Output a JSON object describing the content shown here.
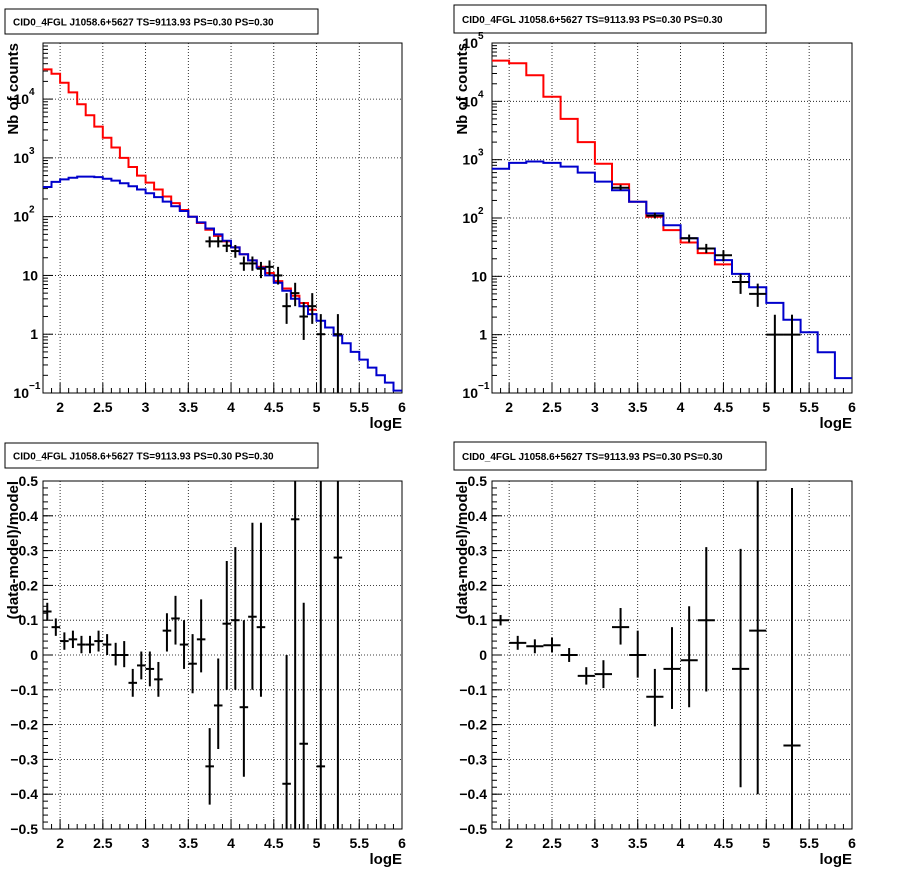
{
  "chart_data": [
    {
      "type": "line",
      "title": "CID0_4FGL J1058.6+5627 TS=9113.93 PS=0.30 PS=0.30",
      "xlabel": "logE",
      "ylabel": "Nb of counts",
      "xlim": [
        1.8,
        6.0
      ],
      "ylim": [
        0.1,
        90000
      ],
      "log_y": true,
      "grid": true,
      "x_ticks": [
        "2",
        "2.5",
        "3",
        "3.5",
        "4",
        "4.5",
        "5",
        "5.5",
        "6"
      ],
      "y_ticks": [
        {
          "v": 0.1,
          "b": "10",
          "e": "−1"
        },
        {
          "v": 1,
          "b": "1",
          "e": ""
        },
        {
          "v": 10,
          "b": "10",
          "e": ""
        },
        {
          "v": 100,
          "b": "10",
          "e": "2"
        },
        {
          "v": 1000,
          "b": "10",
          "e": "3"
        },
        {
          "v": 10000,
          "b": "10",
          "e": "4"
        }
      ],
      "series": [
        {
          "color": "#ff0000",
          "kind": "step",
          "edges": [
            1.8,
            1.9,
            2.0,
            2.1,
            2.2,
            2.3,
            2.4,
            2.5,
            2.6,
            2.7,
            2.8,
            2.9,
            3.0,
            3.1,
            3.2,
            3.3,
            3.4,
            3.5,
            3.6,
            3.7,
            3.8,
            3.9,
            4.0,
            4.1,
            4.2,
            4.3,
            4.4,
            4.5,
            4.6,
            4.7,
            4.8,
            4.9,
            5.0
          ],
          "values": [
            32000,
            27000,
            19000,
            13000,
            8200,
            5300,
            3400,
            2200,
            1500,
            1000,
            700,
            500,
            380,
            290,
            220,
            170,
            130,
            100,
            78,
            60,
            47,
            38,
            30,
            23,
            18,
            14,
            11,
            8,
            6,
            4.5,
            3.4,
            2.6
          ]
        },
        {
          "color": "#0000cc",
          "kind": "step",
          "edges": [
            1.8,
            1.9,
            2.0,
            2.1,
            2.2,
            2.3,
            2.4,
            2.5,
            2.6,
            2.7,
            2.8,
            2.9,
            3.0,
            3.1,
            3.2,
            3.3,
            3.4,
            3.5,
            3.6,
            3.7,
            3.8,
            3.9,
            4.0,
            4.1,
            4.2,
            4.3,
            4.4,
            4.5,
            4.6,
            4.7,
            4.8,
            4.9,
            5.0,
            5.1,
            5.2,
            5.3,
            5.4,
            5.5,
            5.6,
            5.7,
            5.8,
            5.9,
            6.0
          ],
          "values": [
            320,
            390,
            430,
            460,
            480,
            480,
            470,
            440,
            410,
            370,
            330,
            290,
            250,
            215,
            180,
            150,
            125,
            100,
            80,
            63,
            50,
            39,
            30,
            23,
            18,
            13.5,
            10,
            7.5,
            5.5,
            4,
            3,
            2.2,
            1.7,
            1.3,
            0.95,
            0.7,
            0.5,
            0.37,
            0.27,
            0.2,
            0.15,
            0.11
          ]
        },
        {
          "color": "#000000",
          "kind": "errors",
          "points": [
            {
              "x": 3.75,
              "xerr": 0.05,
              "y": 38,
              "lo": 30,
              "hi": 46
            },
            {
              "x": 3.85,
              "xerr": 0.05,
              "y": 38,
              "lo": 30,
              "hi": 46
            },
            {
              "x": 3.95,
              "xerr": 0.05,
              "y": 32,
              "lo": 25,
              "hi": 39
            },
            {
              "x": 4.05,
              "xerr": 0.05,
              "y": 26,
              "lo": 20,
              "hi": 33
            },
            {
              "x": 4.15,
              "xerr": 0.05,
              "y": 16,
              "lo": 12,
              "hi": 21
            },
            {
              "x": 4.25,
              "xerr": 0.05,
              "y": 16,
              "lo": 12,
              "hi": 21
            },
            {
              "x": 4.35,
              "xerr": 0.05,
              "y": 13,
              "lo": 9,
              "hi": 17
            },
            {
              "x": 4.45,
              "xerr": 0.05,
              "y": 14,
              "lo": 10,
              "hi": 18
            },
            {
              "x": 4.55,
              "xerr": 0.05,
              "y": 10,
              "lo": 7,
              "hi": 14
            },
            {
              "x": 4.65,
              "xerr": 0.05,
              "y": 3,
              "lo": 1.5,
              "hi": 5
            },
            {
              "x": 4.75,
              "xerr": 0.05,
              "y": 5,
              "lo": 3,
              "hi": 7.5
            },
            {
              "x": 4.85,
              "xerr": 0.05,
              "y": 2,
              "lo": 0.8,
              "hi": 3.5
            },
            {
              "x": 4.95,
              "xerr": 0.05,
              "y": 3,
              "lo": 1.5,
              "hi": 5
            },
            {
              "x": 5.05,
              "xerr": 0.05,
              "y": 1,
              "lo": 0.1,
              "hi": 2.2
            },
            {
              "x": 5.25,
              "xerr": 0.05,
              "y": 1,
              "lo": 0.1,
              "hi": 2.2
            }
          ]
        }
      ]
    },
    {
      "type": "line",
      "title": "CID0_4FGL J1058.6+5627 TS=9113.93 PS=0.30 PS=0.30",
      "xlabel": "logE",
      "ylabel": "Nb of counts",
      "xlim": [
        1.8,
        6.0
      ],
      "ylim": [
        0.1,
        100000
      ],
      "log_y": true,
      "grid": true,
      "x_ticks": [
        "2",
        "2.5",
        "3",
        "3.5",
        "4",
        "4.5",
        "5",
        "5.5",
        "6"
      ],
      "y_ticks": [
        {
          "v": 0.1,
          "b": "10",
          "e": "−1"
        },
        {
          "v": 1,
          "b": "1",
          "e": ""
        },
        {
          "v": 10,
          "b": "10",
          "e": ""
        },
        {
          "v": 100,
          "b": "10",
          "e": "2"
        },
        {
          "v": 1000,
          "b": "10",
          "e": "3"
        },
        {
          "v": 10000,
          "b": "10",
          "e": "4"
        },
        {
          "v": 100000,
          "b": "10",
          "e": "5"
        }
      ],
      "series": [
        {
          "color": "#ff0000",
          "kind": "step",
          "edges": [
            1.8,
            2.0,
            2.2,
            2.4,
            2.6,
            2.8,
            3.0,
            3.2,
            3.4,
            3.6,
            3.8,
            4.0,
            4.2,
            4.4,
            4.6
          ],
          "values": [
            50000,
            45000,
            28000,
            12000,
            5000,
            2000,
            850,
            380,
            190,
            105,
            62,
            38,
            25,
            16
          ]
        },
        {
          "color": "#0000cc",
          "kind": "step",
          "edges": [
            1.8,
            2.0,
            2.2,
            2.4,
            2.6,
            2.8,
            3.0,
            3.2,
            3.4,
            3.6,
            3.8,
            4.0,
            4.2,
            4.4,
            4.6,
            4.8,
            5.0,
            5.2,
            5.4,
            5.6,
            5.8,
            6.0
          ],
          "values": [
            700,
            880,
            930,
            880,
            760,
            600,
            420,
            300,
            190,
            120,
            75,
            45,
            30,
            19,
            11,
            6.5,
            3.5,
            1.8,
            1.1,
            0.5,
            0.18
          ]
        },
        {
          "color": "#000000",
          "kind": "errors",
          "points": [
            {
              "x": 3.3,
              "xerr": 0.1,
              "y": 330,
              "lo": 300,
              "hi": 370
            },
            {
              "x": 3.7,
              "xerr": 0.1,
              "y": 110,
              "lo": 98,
              "hi": 123
            },
            {
              "x": 4.1,
              "xerr": 0.1,
              "y": 45,
              "lo": 38,
              "hi": 52
            },
            {
              "x": 4.3,
              "xerr": 0.1,
              "y": 30,
              "lo": 25,
              "hi": 36
            },
            {
              "x": 4.5,
              "xerr": 0.1,
              "y": 23,
              "lo": 18,
              "hi": 28
            },
            {
              "x": 4.7,
              "xerr": 0.1,
              "y": 8,
              "lo": 5,
              "hi": 11
            },
            {
              "x": 4.9,
              "xerr": 0.1,
              "y": 5,
              "lo": 3,
              "hi": 7.5
            },
            {
              "x": 5.1,
              "xerr": 0.1,
              "y": 1,
              "lo": 0.1,
              "hi": 2.2
            },
            {
              "x": 5.3,
              "xerr": 0.1,
              "y": 1,
              "lo": 0.1,
              "hi": 2.2
            }
          ]
        }
      ]
    },
    {
      "type": "scatter",
      "title": "CID0_4FGL J1058.6+5627 TS=9113.93 PS=0.30 PS=0.30",
      "xlabel": "logE",
      "ylabel": "(data-model)/model",
      "xlim": [
        1.8,
        6.0
      ],
      "ylim": [
        -0.5,
        0.5
      ],
      "log_y": false,
      "grid": true,
      "x_ticks": [
        "2",
        "2.5",
        "3",
        "3.5",
        "4",
        "4.5",
        "5",
        "5.5",
        "6"
      ],
      "y_ticks": [
        "−0.5",
        "−0.4",
        "−0.3",
        "−0.2",
        "−0.1",
        "0",
        "0.1",
        "0.2",
        "0.3",
        "0.4",
        "0.5"
      ],
      "series": [
        {
          "color": "#000000",
          "kind": "errors",
          "points": [
            {
              "x": 1.85,
              "xerr": 0.05,
              "y": 0.125,
              "lo": 0.1,
              "hi": 0.15
            },
            {
              "x": 1.95,
              "xerr": 0.05,
              "y": 0.08,
              "lo": 0.055,
              "hi": 0.105
            },
            {
              "x": 2.05,
              "xerr": 0.05,
              "y": 0.04,
              "lo": 0.015,
              "hi": 0.065
            },
            {
              "x": 2.15,
              "xerr": 0.05,
              "y": 0.045,
              "lo": 0.02,
              "hi": 0.07
            },
            {
              "x": 2.25,
              "xerr": 0.05,
              "y": 0.03,
              "lo": 0.005,
              "hi": 0.055
            },
            {
              "x": 2.35,
              "xerr": 0.05,
              "y": 0.03,
              "lo": 0.005,
              "hi": 0.055
            },
            {
              "x": 2.45,
              "xerr": 0.05,
              "y": 0.04,
              "lo": 0.01,
              "hi": 0.07
            },
            {
              "x": 2.55,
              "xerr": 0.05,
              "y": 0.03,
              "lo": 0.0,
              "hi": 0.06
            },
            {
              "x": 2.65,
              "xerr": 0.05,
              "y": 0.0,
              "lo": -0.03,
              "hi": 0.035
            },
            {
              "x": 2.75,
              "xerr": 0.05,
              "y": 0.0,
              "lo": -0.035,
              "hi": 0.04
            },
            {
              "x": 2.85,
              "xerr": 0.05,
              "y": -0.08,
              "lo": -0.12,
              "hi": -0.04
            },
            {
              "x": 2.95,
              "xerr": 0.05,
              "y": -0.03,
              "lo": -0.07,
              "hi": 0.01
            },
            {
              "x": 3.05,
              "xerr": 0.05,
              "y": -0.04,
              "lo": -0.09,
              "hi": 0.01
            },
            {
              "x": 3.15,
              "xerr": 0.05,
              "y": -0.07,
              "lo": -0.12,
              "hi": -0.02
            },
            {
              "x": 3.25,
              "xerr": 0.05,
              "y": 0.07,
              "lo": 0.01,
              "hi": 0.12
            },
            {
              "x": 3.35,
              "xerr": 0.05,
              "y": 0.105,
              "lo": 0.03,
              "hi": 0.17
            },
            {
              "x": 3.45,
              "xerr": 0.05,
              "y": 0.03,
              "lo": -0.04,
              "hi": 0.1
            },
            {
              "x": 3.55,
              "xerr": 0.05,
              "y": -0.025,
              "lo": -0.11,
              "hi": 0.06
            },
            {
              "x": 3.65,
              "xerr": 0.05,
              "y": 0.045,
              "lo": -0.05,
              "hi": 0.16
            },
            {
              "x": 3.75,
              "xerr": 0.05,
              "y": -0.32,
              "lo": -0.43,
              "hi": -0.21
            },
            {
              "x": 3.85,
              "xerr": 0.05,
              "y": -0.145,
              "lo": -0.27,
              "hi": -0.01
            },
            {
              "x": 3.95,
              "xerr": 0.05,
              "y": 0.09,
              "lo": -0.1,
              "hi": 0.27
            },
            {
              "x": 4.05,
              "xerr": 0.05,
              "y": 0.1,
              "lo": -0.1,
              "hi": 0.31
            },
            {
              "x": 4.15,
              "xerr": 0.05,
              "y": -0.15,
              "lo": -0.35,
              "hi": 0.1
            },
            {
              "x": 4.25,
              "xerr": 0.05,
              "y": 0.11,
              "lo": -0.1,
              "hi": 0.38
            },
            {
              "x": 4.35,
              "xerr": 0.05,
              "y": 0.08,
              "lo": -0.12,
              "hi": 0.38
            },
            {
              "x": 4.65,
              "xerr": 0.05,
              "y": -0.37,
              "lo": -0.5,
              "hi": 0.0
            },
            {
              "x": 4.75,
              "xerr": 0.05,
              "y": 0.39,
              "lo": -0.5,
              "hi": 0.5
            },
            {
              "x": 4.85,
              "xerr": 0.05,
              "y": -0.255,
              "lo": -0.5,
              "hi": 0.15
            },
            {
              "x": 5.05,
              "xerr": 0.05,
              "y": -0.32,
              "lo": -0.5,
              "hi": 0.5
            },
            {
              "x": 5.25,
              "xerr": 0.05,
              "y": 0.28,
              "lo": -0.5,
              "hi": 0.5
            }
          ]
        }
      ]
    },
    {
      "type": "scatter",
      "title": "CID0_4FGL J1058.6+5627 TS=9113.93 PS=0.30 PS=0.30",
      "xlabel": "logE",
      "ylabel": "(data-model)/model",
      "xlim": [
        1.8,
        6.0
      ],
      "ylim": [
        -0.5,
        0.5
      ],
      "log_y": false,
      "grid": true,
      "x_ticks": [
        "2",
        "2.5",
        "3",
        "3.5",
        "4",
        "4.5",
        "5",
        "5.5",
        "6"
      ],
      "y_ticks": [
        "−0.5",
        "−0.4",
        "−0.3",
        "−0.2",
        "−0.1",
        "0",
        "0.1",
        "0.2",
        "0.3",
        "0.4",
        "0.5"
      ],
      "series": [
        {
          "color": "#000000",
          "kind": "errors",
          "points": [
            {
              "x": 1.9,
              "xerr": 0.1,
              "y": 0.1,
              "lo": 0.085,
              "hi": 0.115
            },
            {
              "x": 2.1,
              "xerr": 0.1,
              "y": 0.035,
              "lo": 0.015,
              "hi": 0.055
            },
            {
              "x": 2.3,
              "xerr": 0.1,
              "y": 0.025,
              "lo": 0.005,
              "hi": 0.045
            },
            {
              "x": 2.5,
              "xerr": 0.1,
              "y": 0.028,
              "lo": 0.008,
              "hi": 0.05
            },
            {
              "x": 2.7,
              "xerr": 0.1,
              "y": 0.0,
              "lo": -0.02,
              "hi": 0.02
            },
            {
              "x": 2.9,
              "xerr": 0.1,
              "y": -0.06,
              "lo": -0.085,
              "hi": -0.035
            },
            {
              "x": 3.1,
              "xerr": 0.1,
              "y": -0.055,
              "lo": -0.095,
              "hi": -0.015
            },
            {
              "x": 3.3,
              "xerr": 0.1,
              "y": 0.08,
              "lo": 0.03,
              "hi": 0.135
            },
            {
              "x": 3.5,
              "xerr": 0.1,
              "y": 0.0,
              "lo": -0.065,
              "hi": 0.07
            },
            {
              "x": 3.7,
              "xerr": 0.1,
              "y": -0.12,
              "lo": -0.205,
              "hi": -0.04
            },
            {
              "x": 3.9,
              "xerr": 0.1,
              "y": -0.04,
              "lo": -0.155,
              "hi": 0.08
            },
            {
              "x": 4.1,
              "xerr": 0.1,
              "y": -0.015,
              "lo": -0.15,
              "hi": 0.14
            },
            {
              "x": 4.3,
              "xerr": 0.1,
              "y": 0.1,
              "lo": -0.105,
              "hi": 0.31
            },
            {
              "x": 4.7,
              "xerr": 0.1,
              "y": -0.04,
              "lo": -0.38,
              "hi": 0.305
            },
            {
              "x": 4.9,
              "xerr": 0.1,
              "y": 0.07,
              "lo": -0.4,
              "hi": 0.5
            },
            {
              "x": 5.3,
              "xerr": 0.1,
              "y": -0.26,
              "lo": -0.5,
              "hi": 0.48
            }
          ]
        }
      ]
    }
  ]
}
